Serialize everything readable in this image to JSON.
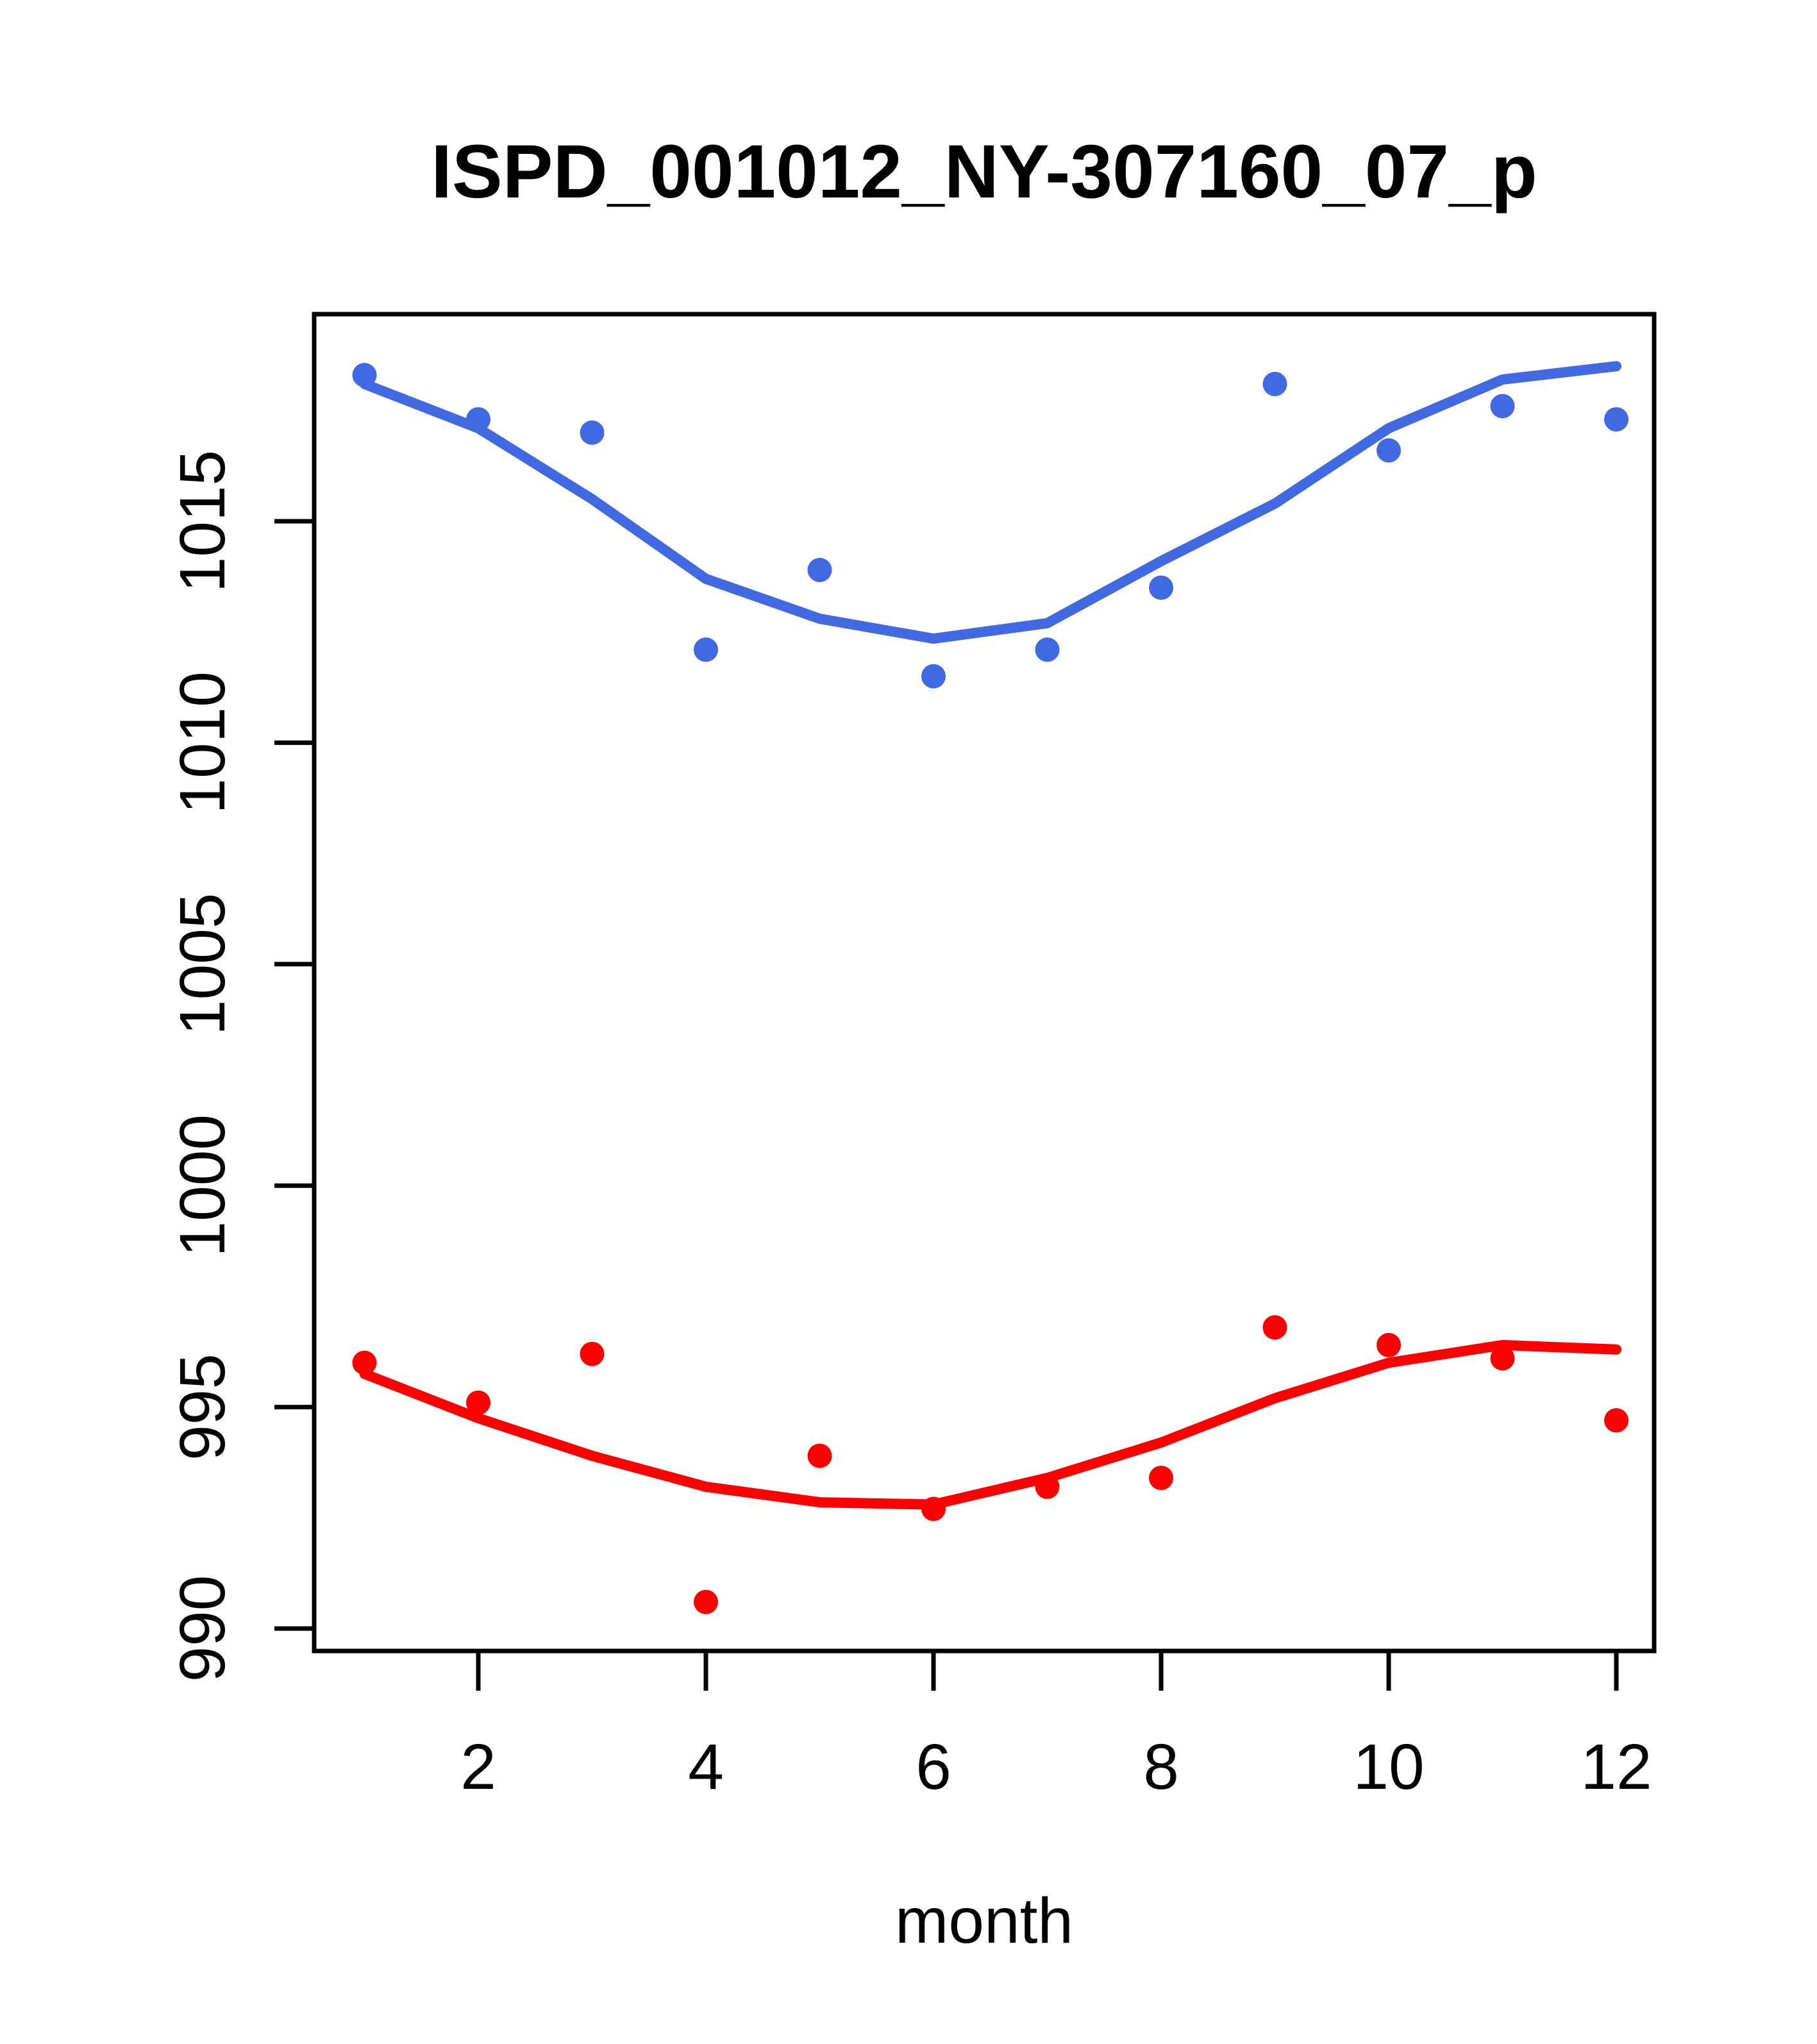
{
  "page": {
    "background": "#FFFFFF"
  },
  "chart_data": {
    "type": "scatter",
    "title": "ISPD_001012_NY-307160_07_p",
    "xlabel": "month",
    "ylabel": "",
    "x": [
      1,
      2,
      3,
      4,
      5,
      6,
      7,
      8,
      9,
      10,
      11,
      12
    ],
    "x_ticks": [
      2,
      4,
      6,
      8,
      10,
      12
    ],
    "y_ticks": [
      990,
      995,
      1000,
      1005,
      1010,
      1015
    ],
    "xlim": [
      0.56,
      12.44
    ],
    "ylim": [
      989.5,
      1019.7
    ],
    "grid": false,
    "legend_position": "none",
    "axis_color": "#000000",
    "series": [
      {
        "name": "upper-blue-series",
        "render": "points-with-smooth-line",
        "color": "#4169E1",
        "points": [
          1018.3,
          1017.3,
          1017.0,
          1012.1,
          1013.9,
          1011.5,
          1012.1,
          1013.5,
          1018.1,
          1016.6,
          1017.6,
          1017.3
        ],
        "smooth": [
          1018.1,
          1017.1,
          1015.5,
          1013.7,
          1012.8,
          1012.35,
          1012.7,
          1014.1,
          1015.4,
          1017.1,
          1018.2,
          1018.5
        ]
      },
      {
        "name": "lower-red-series",
        "render": "points-with-smooth-line",
        "color": "#FF0000",
        "points": [
          996.0,
          995.1,
          996.2,
          990.6,
          993.9,
          992.7,
          993.2,
          993.4,
          996.8,
          996.4,
          996.1,
          994.7
        ],
        "smooth": [
          995.75,
          994.75,
          993.9,
          993.2,
          992.85,
          992.8,
          993.4,
          994.2,
          995.2,
          996.0,
          996.4,
          996.3
        ]
      }
    ]
  }
}
